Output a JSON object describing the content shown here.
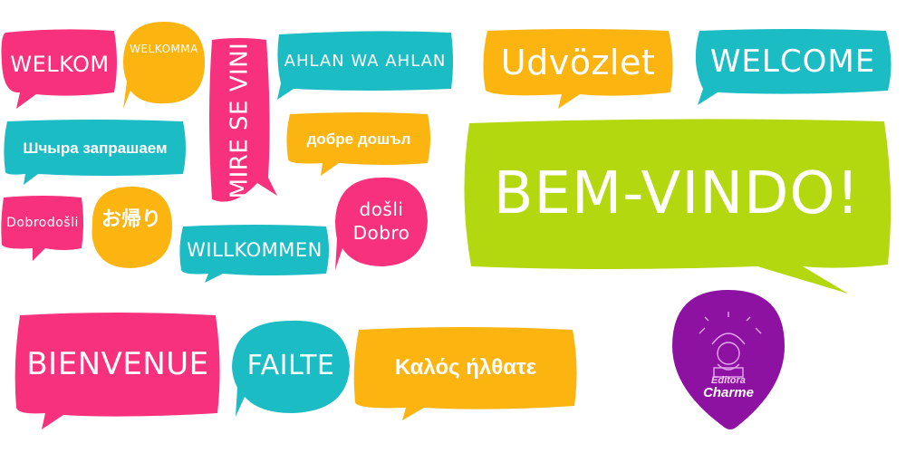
{
  "bubbles": {
    "welkom": "WELKOM",
    "welkomma": "WELKOMMA",
    "mire_se_vini": "MIRE SE VINI",
    "ahlan": "AHLAN WA AHLAN",
    "udvozlet": "Udvözlet",
    "welcome": "WELCOME",
    "shchyra": "Шчыра запрашаем",
    "dobre_doshal": "добре дошъл",
    "bem_vindo": "BEM-VINDO!",
    "dobrodosli": "Dobrodošli",
    "okaeri": "お帰り",
    "willkommen": "WILLKOMMEN",
    "dosli": "došli",
    "dobro": "Dobro",
    "bienvenue": "BIENVENUE",
    "failte": "FAILTE",
    "kalos": "Καλός ήλθατε"
  },
  "logo": {
    "line1": "Editora",
    "line2": "Charme"
  },
  "colors": {
    "pink": "#f8317c",
    "teal": "#1bbcc3",
    "yellow": "#fbb410",
    "lime": "#b3d80f",
    "purple": "#8e12a2"
  }
}
